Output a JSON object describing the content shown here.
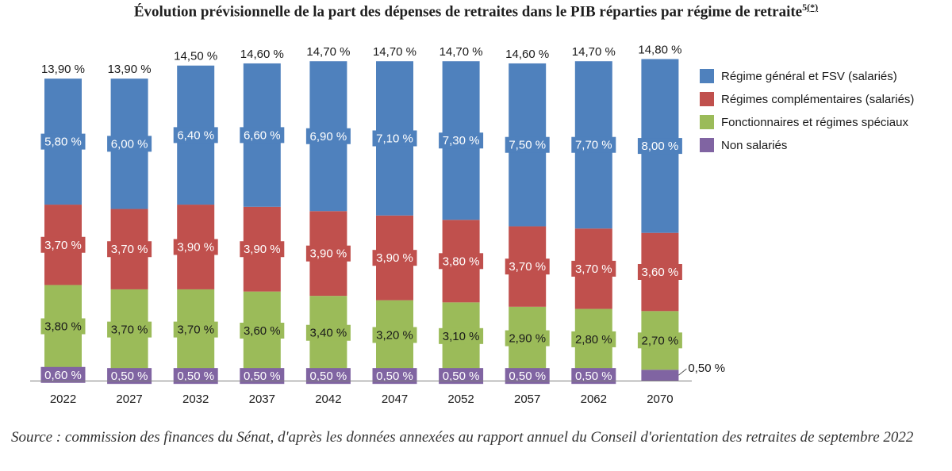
{
  "title": "Évolution prévisionnelle de la part des dépenses de retraites dans le PIB réparties par régime de retraite",
  "title_note": "5",
  "title_note_link": "(*)",
  "source": "Source : commission des finances du Sénat, d'après les données annexées au rapport annuel du Conseil d'orientation des retraites de septembre 2022",
  "chart_data": {
    "type": "bar",
    "stacked": true,
    "categories": [
      "2022",
      "2027",
      "2032",
      "2037",
      "2042",
      "2047",
      "2052",
      "2057",
      "2062",
      "2070"
    ],
    "totals": [
      13.9,
      13.9,
      14.5,
      14.6,
      14.7,
      14.7,
      14.7,
      14.6,
      14.7,
      14.8
    ],
    "totals_labels": [
      "13,90 %",
      "13,90 %",
      "14,50 %",
      "14,60 %",
      "14,70 %",
      "14,70 %",
      "14,70 %",
      "14,60 %",
      "14,70 %",
      "14,80 %"
    ],
    "series": [
      {
        "name": "Non salariés",
        "color": "#8064a2",
        "values": [
          0.6,
          0.5,
          0.5,
          0.5,
          0.5,
          0.5,
          0.5,
          0.5,
          0.5,
          0.5
        ],
        "labels": [
          "0,60 %",
          "0,50 %",
          "0,50 %",
          "0,50 %",
          "0,50 %",
          "0,50 %",
          "0,50 %",
          "0,50 %",
          "0,50 %",
          "0,50 %"
        ]
      },
      {
        "name": "Fonctionnaires et régimes spéciaux",
        "color": "#9bbb59",
        "values": [
          3.8,
          3.7,
          3.7,
          3.6,
          3.4,
          3.2,
          3.1,
          2.9,
          2.8,
          2.7
        ],
        "labels": [
          "3,80 %",
          "3,70 %",
          "3,70 %",
          "3,60 %",
          "3,40 %",
          "3,20 %",
          "3,10 %",
          "2,90 %",
          "2,80 %",
          "2,70 %"
        ]
      },
      {
        "name": "Régimes complémentaires (salariés)",
        "color": "#c0504d",
        "values": [
          3.7,
          3.7,
          3.9,
          3.9,
          3.9,
          3.9,
          3.8,
          3.7,
          3.7,
          3.6
        ],
        "labels": [
          "3,70 %",
          "3,70 %",
          "3,90 %",
          "3,90 %",
          "3,90 %",
          "3,90 %",
          "3,80 %",
          "3,70 %",
          "3,70 %",
          "3,60 %"
        ]
      },
      {
        "name": "Régime général et FSV (salariés)",
        "color": "#4f81bd",
        "values": [
          5.8,
          6.0,
          6.4,
          6.6,
          6.9,
          7.1,
          7.3,
          7.5,
          7.7,
          8.0
        ],
        "labels": [
          "5,80 %",
          "6,00 %",
          "6,40 %",
          "6,60 %",
          "6,90 %",
          "7,10 %",
          "7,30 %",
          "7,50 %",
          "7,70 %",
          "8,00 %"
        ]
      }
    ],
    "legend_order": [
      "Régime général et FSV (salariés)",
      "Régimes complémentaires (salariés)",
      "Fonctionnaires et régimes spéciaux",
      "Non salariés"
    ],
    "legend_placement": "right",
    "grid": false
  }
}
